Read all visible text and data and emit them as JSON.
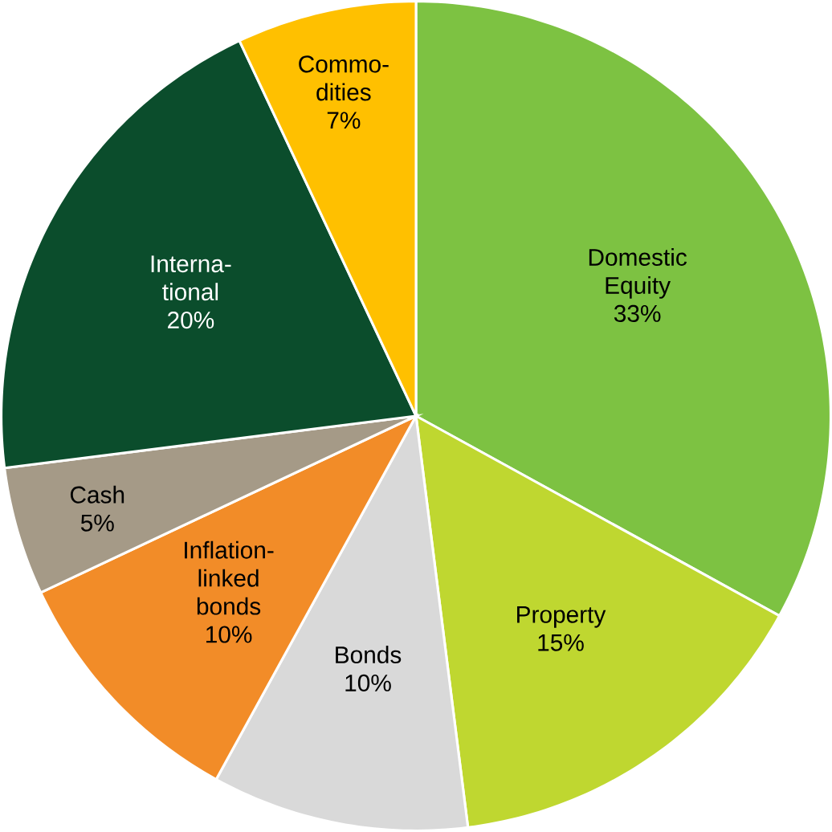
{
  "chart_data": {
    "type": "pie",
    "categories": [
      "Domestic Equity",
      "Property",
      "Bonds",
      "Inflation-linked bonds",
      "Cash",
      "Interna-tional",
      "Commo-dities"
    ],
    "values": [
      33,
      15,
      10,
      10,
      5,
      20,
      7
    ],
    "value_labels": [
      "33%",
      "15%",
      "10%",
      "10%",
      "5%",
      "20%",
      "7%"
    ],
    "colors": [
      "#7dc242",
      "#bfd730",
      "#d9d9d9",
      "#f28c28",
      "#a59a87",
      "#0b4d2c",
      "#ffc000"
    ]
  }
}
